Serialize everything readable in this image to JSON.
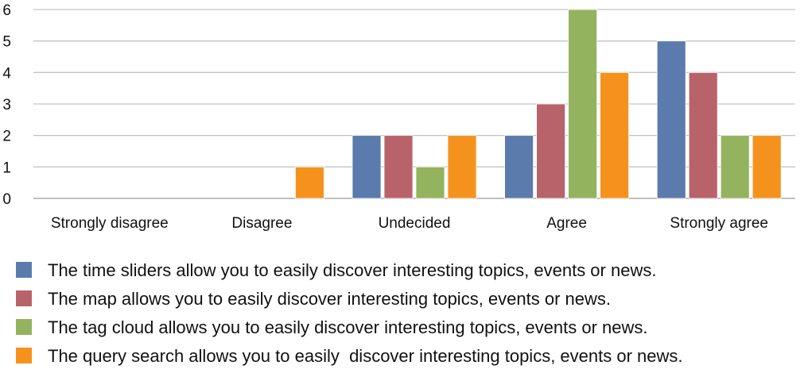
{
  "chart_data": {
    "type": "bar",
    "title": "",
    "xlabel": "",
    "ylabel": "",
    "ylim": [
      0,
      6
    ],
    "yticks": [
      0,
      1,
      2,
      3,
      4,
      5,
      6
    ],
    "grid": true,
    "legend_position": "bottom",
    "categories": [
      "Strongly disagree",
      "Disagree",
      "Undecided",
      "Agree",
      "Strongly agree"
    ],
    "series": [
      {
        "name": "The time sliders allow you to easily discover interesting topics, events or news.",
        "color": "#5b7bad",
        "values": [
          0,
          0,
          2,
          2,
          5
        ]
      },
      {
        "name": "The map allows you to easily discover interesting topics, events or news.",
        "color": "#b8636a",
        "values": [
          0,
          0,
          2,
          3,
          4
        ]
      },
      {
        "name": "The tag cloud allows you to easily discover interesting topics, events or news.",
        "color": "#94b35e",
        "values": [
          0,
          0,
          1,
          6,
          2
        ]
      },
      {
        "name": "The query search allows you to easily  discover interesting topics, events or news.",
        "color": "#f5921e",
        "values": [
          0,
          1,
          2,
          4,
          2
        ]
      }
    ]
  }
}
